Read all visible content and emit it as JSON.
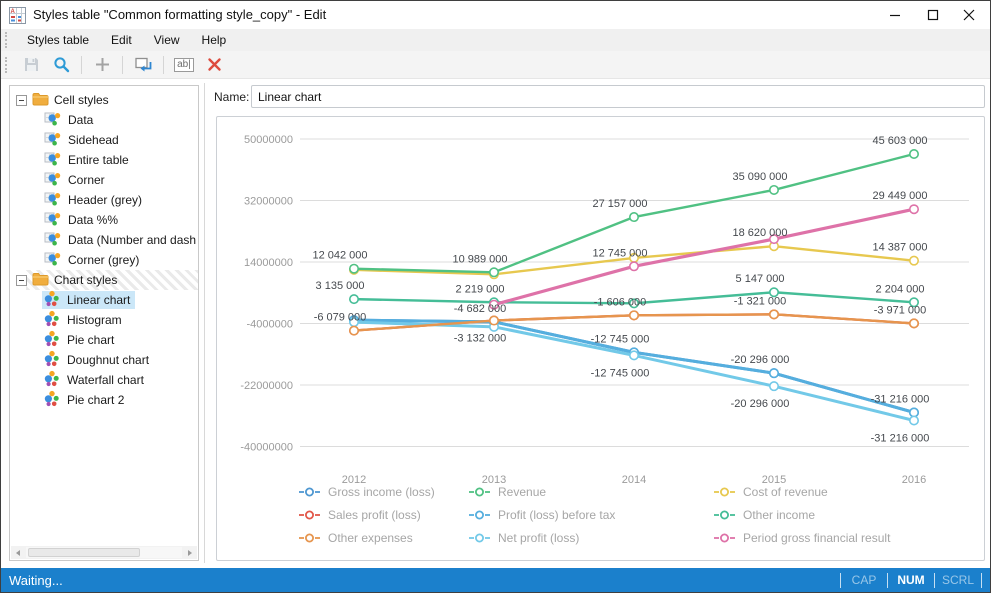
{
  "window": {
    "title": "Styles table \"Common formatting style_copy\" - Edit"
  },
  "menu": {
    "items": [
      "Styles table",
      "Edit",
      "View",
      "Help"
    ]
  },
  "toolbar": {
    "icons": [
      "save-icon",
      "search-icon",
      "add-icon",
      "copy-style-icon",
      "rename-icon",
      "delete-icon"
    ],
    "rename_glyph": "ab|"
  },
  "sidebar": {
    "sections": [
      {
        "label": "Cell styles",
        "icon": "cell-style",
        "hatched": false,
        "items": [
          {
            "label": "Data",
            "selected": false
          },
          {
            "label": "Sidehead",
            "selected": false
          },
          {
            "label": "Entire table",
            "selected": false
          },
          {
            "label": "Corner",
            "selected": false
          },
          {
            "label": "Header (grey)",
            "selected": false
          },
          {
            "label": "Data %%",
            "selected": false
          },
          {
            "label": "Data (Number and dash",
            "selected": false
          },
          {
            "label": "Corner (grey)",
            "selected": false
          }
        ]
      },
      {
        "label": "Chart styles",
        "icon": "chart-style",
        "hatched": true,
        "items": [
          {
            "label": "Linear chart",
            "selected": true
          },
          {
            "label": "Histogram",
            "selected": false
          },
          {
            "label": "Pie chart",
            "selected": false
          },
          {
            "label": "Doughnut chart",
            "selected": false
          },
          {
            "label": "Waterfall chart",
            "selected": false
          },
          {
            "label": "Pie chart 2",
            "selected": false
          }
        ]
      }
    ]
  },
  "main": {
    "name_label": "Name:",
    "name_value": "Linear chart"
  },
  "chart_data": {
    "type": "line",
    "x": [
      "2012",
      "2013",
      "2014",
      "2015",
      "2016"
    ],
    "y_ticks": [
      "50000000",
      "32000000",
      "14000000",
      "-4000000",
      "-22000000",
      "-40000000"
    ],
    "ylim": [
      -40000000,
      50000000
    ],
    "grid": true,
    "legend_position": "bottom",
    "series": [
      {
        "key": "sales_profit",
        "name": "Sales profit (loss)",
        "color": "#e25749",
        "values": [
          -6079000,
          -3132000,
          -1606000,
          -1321000,
          -3971000
        ],
        "labels": [
          null,
          null,
          null,
          null,
          null
        ],
        "label_pos": [
          "above",
          "above",
          "above",
          "above",
          "above"
        ]
      },
      {
        "key": "gross_income",
        "name": "Gross income (loss)",
        "color": "#4e97d1",
        "values": [
          -3300000,
          -4682000,
          -12745000,
          -20296000,
          -31216000
        ],
        "labels": [
          null,
          null,
          null,
          null,
          null
        ],
        "label_pos": [
          "above",
          "above",
          "above",
          "above",
          "above"
        ]
      },
      {
        "key": "profit_before_tax",
        "name": "Profit (loss) before tax",
        "color": "#55aede",
        "values": [
          -3300000,
          -4682000,
          -12745000,
          -20296000,
          -31216000
        ],
        "labels": [
          null,
          "-4 682 000",
          "-12 745 000",
          "-20 296 000",
          "-31 216 000"
        ],
        "label_pos": [
          "above",
          "above",
          "above",
          "above",
          "above"
        ]
      },
      {
        "key": "net_profit",
        "name": "Net profit (loss)",
        "color": "#72c9e8",
        "values": [
          -3300000,
          -4682000,
          -12745000,
          -20296000,
          -31216000
        ],
        "labels": [
          null,
          null,
          "-12 745 000",
          "-20 296 000",
          "-31 216 000"
        ],
        "label_pos": [
          "below",
          "below",
          "below",
          "below",
          "below"
        ]
      },
      {
        "key": "other_expenses",
        "name": "Other expenses",
        "color": "#e6954e",
        "values": [
          -6079000,
          -3132000,
          -1606000,
          -1321000,
          -3971000
        ],
        "labels": [
          "-6 079 000",
          "-3 132 000",
          "-1 606 000",
          "-1 321 000",
          "-3 971 000"
        ],
        "label_pos": [
          "above",
          "below",
          "above",
          "above",
          "above"
        ]
      },
      {
        "key": "cost_of_revenue",
        "name": "Cost of revenue",
        "color": "#e7c84f",
        "values": [
          11700000,
          10400000,
          15200000,
          18620000,
          14387000
        ],
        "labels": [
          null,
          null,
          null,
          "18 620 000",
          "14 387 000"
        ],
        "label_pos": [
          "above",
          "above",
          "above",
          "above",
          "above"
        ]
      },
      {
        "key": "revenue",
        "name": "Revenue",
        "color": "#50c183",
        "values": [
          12042000,
          10989000,
          27157000,
          35090000,
          45603000
        ],
        "labels": [
          "12 042 000",
          "10 989 000",
          "27 157 000",
          "35 090 000",
          "45 603 000"
        ],
        "label_pos": [
          "above",
          "above",
          "above",
          "above",
          "above"
        ]
      },
      {
        "key": "other_income",
        "name": "Other income",
        "color": "#45bd97",
        "values": [
          3135000,
          2219000,
          1900000,
          5147000,
          2204000
        ],
        "labels": [
          "3 135 000",
          "2 219 000",
          null,
          "5 147 000",
          "2 204 000"
        ],
        "label_pos": [
          "above",
          "above",
          "above",
          "above",
          "above"
        ]
      },
      {
        "key": "period_gross",
        "name": "Period gross financial result",
        "color": "#de72a8",
        "values": [
          null,
          1500000,
          12745000,
          20700000,
          29449000
        ],
        "labels": [
          null,
          null,
          "12 745 000",
          null,
          "29 449 000"
        ],
        "label_pos": [
          "above",
          "above",
          "above",
          "above",
          "above"
        ]
      }
    ],
    "legend": [
      {
        "label": "Gross income (loss)",
        "color": "#4e97d1"
      },
      {
        "label": "Revenue",
        "color": "#50c183"
      },
      {
        "label": "Cost of revenue",
        "color": "#e7c84f"
      },
      {
        "label": "Sales profit (loss)",
        "color": "#e25749"
      },
      {
        "label": "Profit (loss) before tax",
        "color": "#55aede"
      },
      {
        "label": "Other income",
        "color": "#45bd97"
      },
      {
        "label": "Other expenses",
        "color": "#e6954e"
      },
      {
        "label": "Net profit (loss)",
        "color": "#72c9e8"
      },
      {
        "label": "Period gross financial result",
        "color": "#de72a8"
      }
    ]
  },
  "status_bar": {
    "text": "Waiting...",
    "indicators": [
      {
        "label": "CAP",
        "active": false
      },
      {
        "label": "NUM",
        "active": true
      },
      {
        "label": "SCRL",
        "active": false
      }
    ]
  },
  "colors": {
    "statusbar_blue": "#1b80cc",
    "selection_blue": "#cbe7f8",
    "grid_grey": "#dcdcdc",
    "axis_text": "#9b9b9b",
    "label_text": "#45494e"
  }
}
